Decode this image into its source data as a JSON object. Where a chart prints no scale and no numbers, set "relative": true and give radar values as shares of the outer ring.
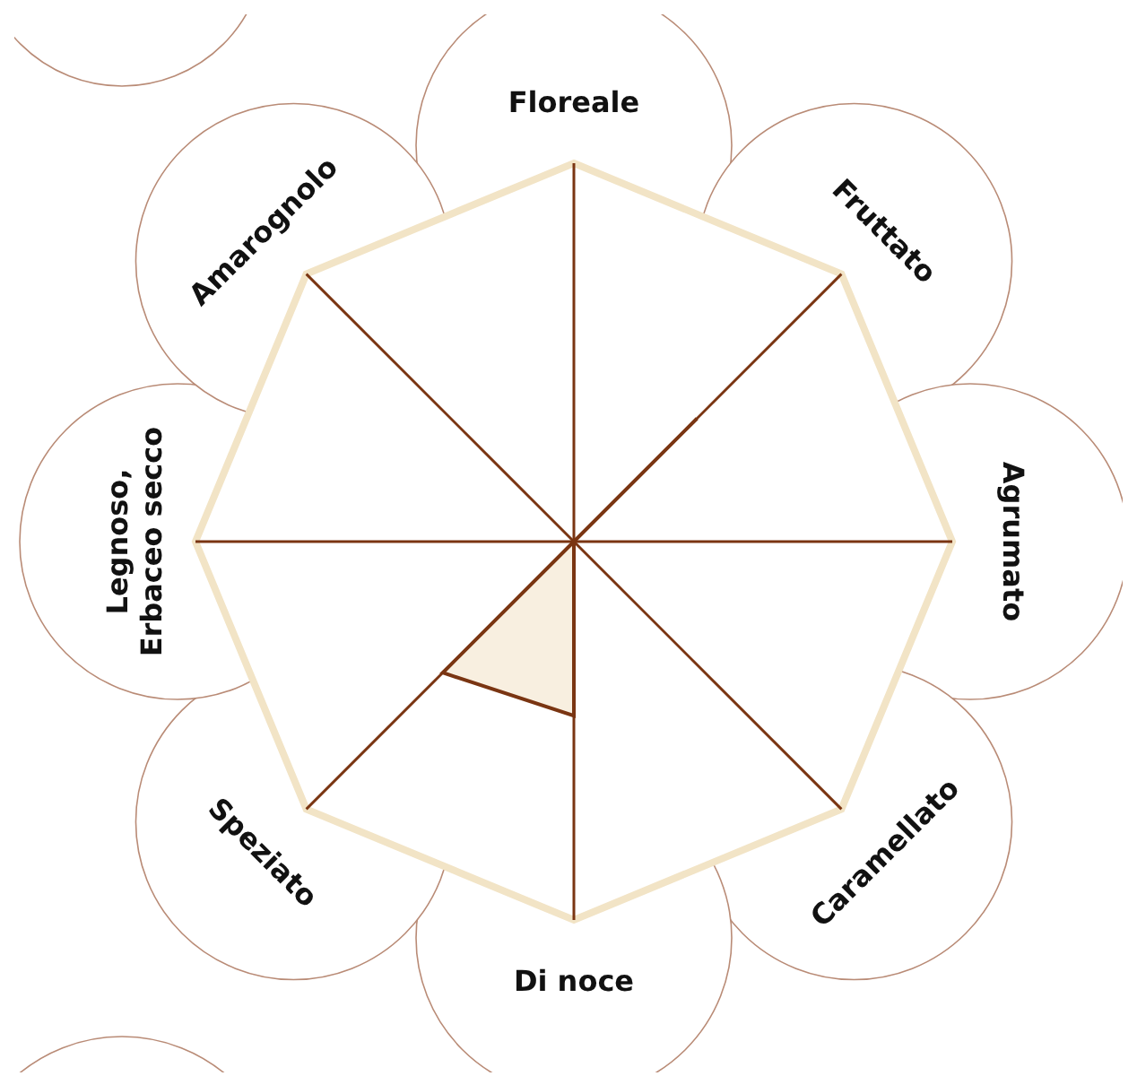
{
  "chart_data": {
    "type": "radar",
    "categories": [
      "Floreale",
      "Fruttato",
      "Agrumato",
      "Caramellato",
      "Di noce",
      "Speziato",
      "Legnoso,\nErbaceo secco",
      "Amarognolo"
    ],
    "relative": true,
    "grid": true,
    "series": [
      {
        "color": "#7a3512",
        "values": [
          0,
          0.46,
          0,
          0,
          0.46,
          0.49,
          0,
          0
        ]
      }
    ]
  }
}
